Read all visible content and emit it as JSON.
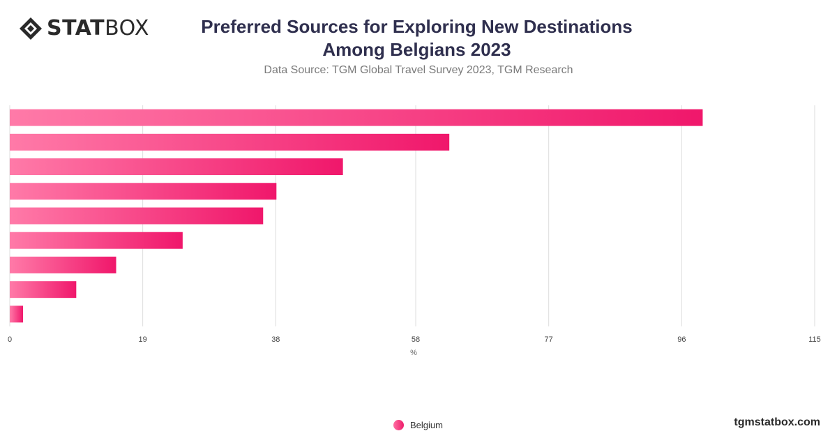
{
  "logo": {
    "strong_text": "STAT",
    "light_text": "BOX"
  },
  "header": {
    "title_line1": "Preferred Sources for Exploring New Destinations",
    "title_line2": "Among Belgians 2023",
    "subtitle": "Data Source: TGM Global Travel Survey 2023, TGM Research"
  },
  "colors": {
    "bar_start": "#ff7aa8",
    "bar_end": "#f0176b",
    "grid": "#dddddd",
    "tick_text": "#444444"
  },
  "chart_data": {
    "type": "bar",
    "orientation": "horizontal",
    "categories": [
      "",
      "",
      "",
      "",
      "",
      "",
      "",
      "",
      ""
    ],
    "series": [
      {
        "name": "Belgium",
        "values": [
          99,
          62.8,
          47.6,
          38.1,
          36.2,
          24.7,
          15.2,
          9.5,
          1.9
        ]
      }
    ],
    "xlabel": "%",
    "ylabel": "",
    "xlim": [
      0,
      115
    ],
    "xticks": [
      "0",
      "19",
      "38",
      "58",
      "77",
      "96",
      "115"
    ],
    "grid": true,
    "legend": "bottom-center"
  },
  "footer": {
    "url": "tgmstatbox.com"
  }
}
